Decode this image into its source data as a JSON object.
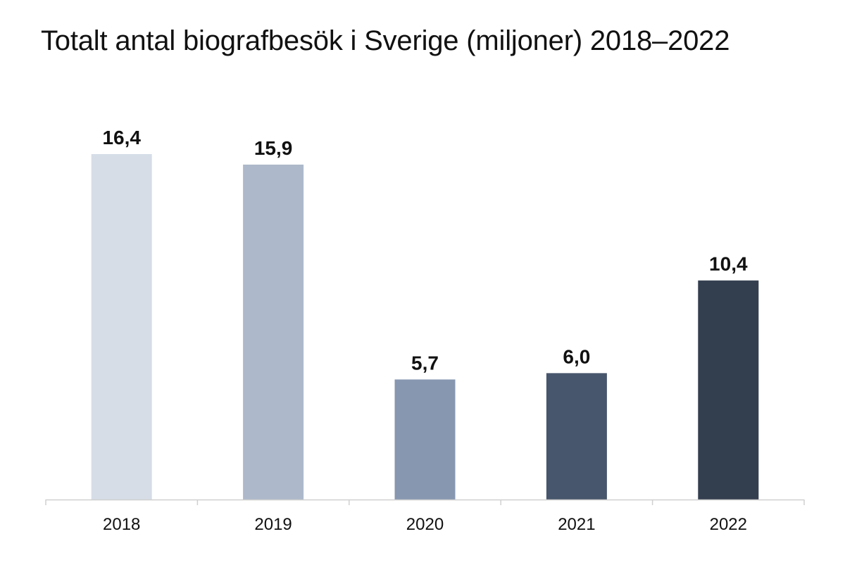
{
  "chart_data": {
    "type": "bar",
    "title": "Totalt antal biografbesök i Sverige (miljoner) 2018–2022",
    "categories": [
      "2018",
      "2019",
      "2020",
      "2021",
      "2022"
    ],
    "values": [
      16.4,
      15.9,
      5.7,
      6.0,
      10.4
    ],
    "value_labels": [
      "16,4",
      "15,9",
      "5,7",
      "6,0",
      "10,4"
    ],
    "bar_colors": [
      "#d6dde7",
      "#adb8ca",
      "#8797b0",
      "#47566c",
      "#333e4f"
    ],
    "axis_color": "#d0d0d0",
    "xlabel": "",
    "ylabel": "",
    "ylim": [
      0,
      16.4
    ],
    "grid": false,
    "legend": "none"
  }
}
